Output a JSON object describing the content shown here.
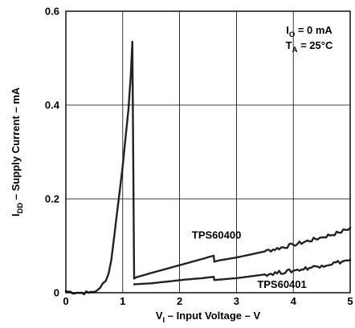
{
  "chart_data": {
    "type": "line",
    "xlabel": {
      "main": "V",
      "sub": "I",
      "rest": " – Input Voltage – V"
    },
    "ylabel": {
      "main": "I",
      "sub": "DD",
      "rest": " – Supply Current – mA"
    },
    "xlim": [
      0,
      5
    ],
    "ylim": [
      0,
      0.6
    ],
    "x_ticks": [
      "0",
      "1",
      "2",
      "3",
      "4",
      "5"
    ],
    "y_ticks": [
      "0",
      "0.2",
      "0.4",
      "0.6"
    ],
    "grid": true,
    "conditions": [
      {
        "main": "I",
        "sub": "O",
        "rest": " = 0 mA"
      },
      {
        "main": "T",
        "sub": "A",
        "rest": " = 25°C"
      }
    ],
    "series": [
      {
        "name": "TPS60400",
        "x": [
          0,
          0.2,
          0.4,
          0.55,
          0.6,
          0.65,
          0.7,
          0.75,
          0.8,
          0.85,
          0.9,
          0.95,
          1.0,
          1.05,
          1.1,
          1.14,
          1.17,
          1.2,
          1.24,
          1.3,
          1.5,
          1.8,
          2.1,
          2.4,
          2.6,
          2.61,
          2.7,
          3.0,
          3.5,
          4.0,
          4.5,
          4.8,
          5.0
        ],
        "y": [
          0.003,
          0.0,
          0.0,
          0.005,
          0.01,
          0.02,
          0.025,
          0.04,
          0.07,
          0.12,
          0.17,
          0.22,
          0.27,
          0.33,
          0.39,
          0.46,
          0.535,
          0.03,
          0.033,
          0.035,
          0.042,
          0.052,
          0.062,
          0.072,
          0.079,
          0.066,
          0.069,
          0.075,
          0.088,
          0.102,
          0.118,
          0.128,
          0.138
        ]
      },
      {
        "name": "TPS60401",
        "x": [
          1.2,
          1.5,
          1.8,
          2.1,
          2.4,
          2.6,
          2.61,
          2.8,
          3.0,
          3.5,
          4.0,
          4.5,
          5.0
        ],
        "y": [
          0.018,
          0.02,
          0.024,
          0.028,
          0.031,
          0.034,
          0.027,
          0.029,
          0.031,
          0.039,
          0.047,
          0.058,
          0.07
        ]
      }
    ],
    "series_labels": [
      {
        "text": "TPS60400",
        "x": 2.65,
        "y": 0.115
      },
      {
        "text": "TPS60401",
        "x": 3.8,
        "y": 0.01
      }
    ]
  }
}
